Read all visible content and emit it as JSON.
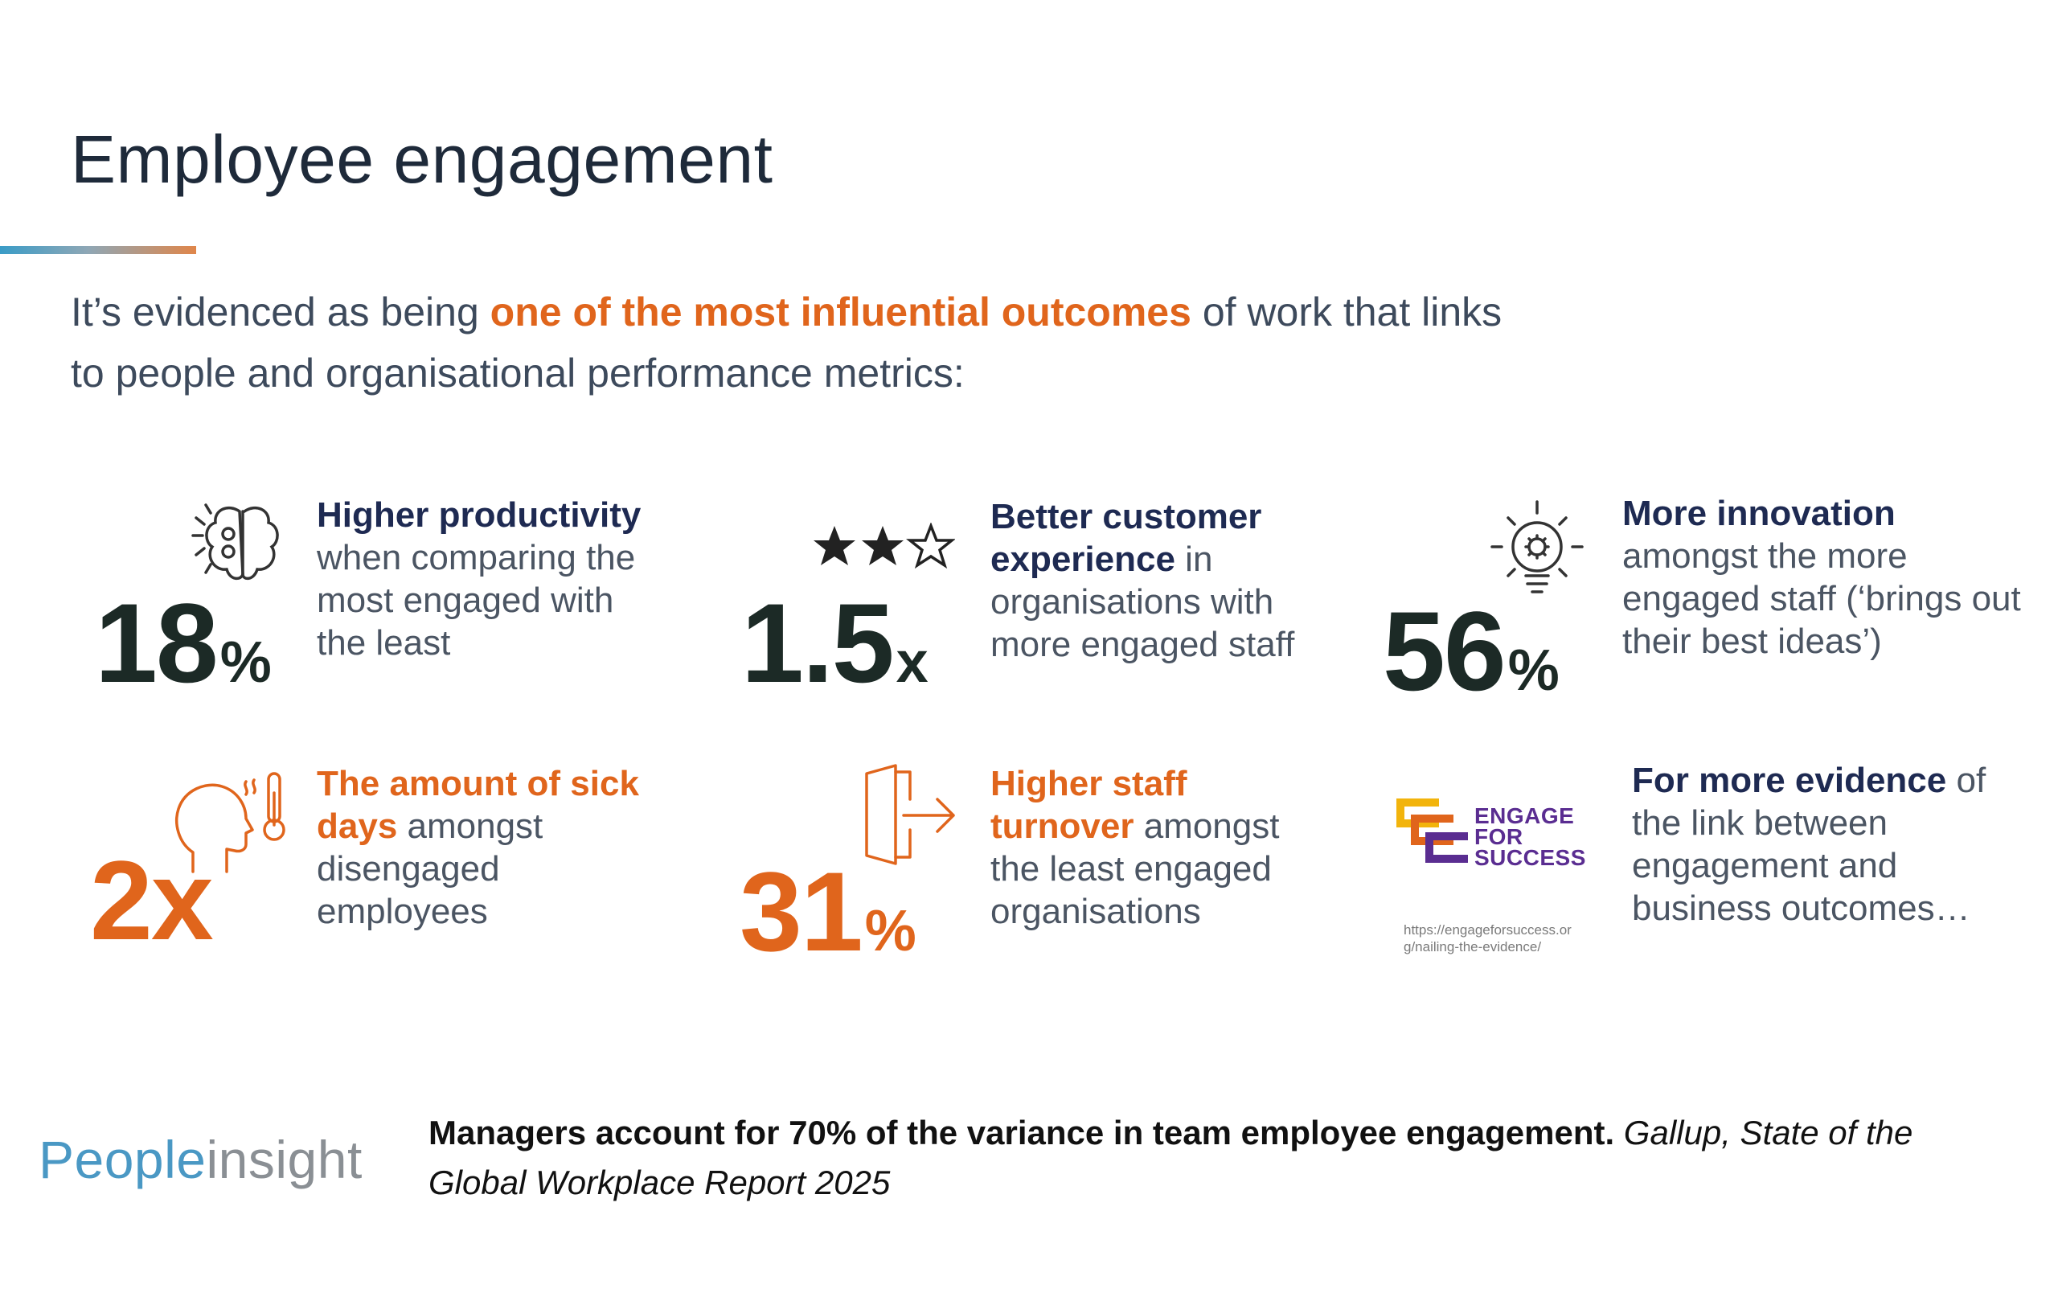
{
  "slide": {
    "title": "Employee engagement",
    "intro": {
      "before": "It’s evidenced as being ",
      "highlight": "one of the most influential outcomes",
      "after": " of work that links to people and organisational performance metrics:"
    }
  },
  "stats": [
    {
      "value": "18",
      "unit": "%",
      "bold": "Higher productivity",
      "text": " when comparing the most engaged with the least",
      "icon": "brain-icon"
    },
    {
      "value": "1.5",
      "unit": "x",
      "bold": "Better customer experience",
      "text": " in organisations with more engaged staff",
      "icon": "stars-icon"
    },
    {
      "value": "56",
      "unit": "%",
      "bold": "More innovation",
      "text": " amongst the more engaged staff (‘brings out their best ideas’)",
      "icon": "lightbulb-icon"
    },
    {
      "value": "2x",
      "unit": "",
      "bold": "The amount of sick days",
      "text": " amongst disengaged employees",
      "icon": "sick-head-icon"
    },
    {
      "value": "31",
      "unit": "%",
      "bold": "Higher staff turnover",
      "text": " amongst the least engaged organisations",
      "icon": "exit-door-icon"
    }
  ],
  "evidence": {
    "logo_lines": [
      "ENGAGE",
      "FOR",
      "SUCCESS"
    ],
    "url": "https://engageforsuccess.org/nailing-the-evidence/",
    "bold": "For more evidence",
    "text": " of the link between engagement and business outcomes…"
  },
  "brand": {
    "part1": "People",
    "part2": "insight"
  },
  "footer": {
    "bold": "Managers account for 70% of the variance in team employee engagement.",
    "italic": " Gallup, State of the Global Workplace Report 2025"
  },
  "colors": {
    "accent_orange": "#e0651c",
    "dark_navy": "#1e2a52",
    "teal_blue": "#4a98c4",
    "logo_purple": "#5a2d91",
    "logo_yellow": "#f2b40c"
  }
}
